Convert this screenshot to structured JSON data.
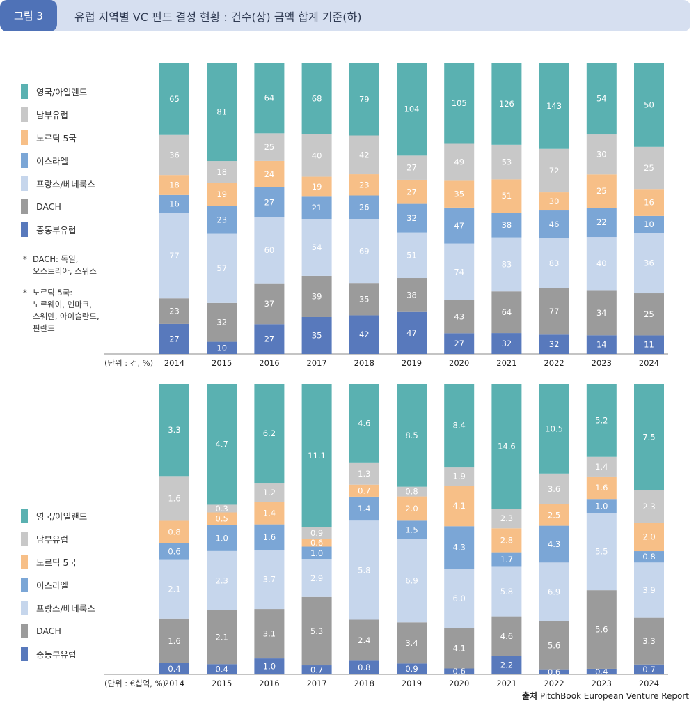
{
  "header": {
    "figure_label": "그림 3",
    "title": "유럽 지역별 VC 펀드 결성 현황 : 건수(상) 금액 합계 기준(하)"
  },
  "legend": {
    "items": [
      {
        "label": "영국/아일랜드",
        "color": "#5ab1b1"
      },
      {
        "label": "남부유럽",
        "color": "#c8c8c8"
      },
      {
        "label": "노르딕 5국",
        "color": "#f7bf87"
      },
      {
        "label": "이스라엘",
        "color": "#7ba6d6"
      },
      {
        "label": "프랑스/베네룩스",
        "color": "#c6d6ec"
      },
      {
        "label": "DACH",
        "color": "#9b9b9b"
      },
      {
        "label": "중동부유럽",
        "color": "#5879bc"
      }
    ]
  },
  "notes": {
    "star": "*",
    "dach_line1": "DACH: 독일,",
    "dach_line2": "오스트리아, 스위스",
    "nordic_line1": "노르딕 5국:",
    "nordic_line2": "노르웨이, 덴마크,",
    "nordic_line3": "스웨덴, 아이슬란드,",
    "nordic_line4": "핀란드"
  },
  "source": {
    "prefix": "출처",
    "text": "PitchBook European Venture Report"
  },
  "chart_data": [
    {
      "type": "bar",
      "stacked": true,
      "normalized": "100%",
      "unit_label": "(단위 : 건, %)",
      "categories": [
        "2014",
        "2015",
        "2016",
        "2017",
        "2018",
        "2019",
        "2020",
        "2021",
        "2022",
        "2023",
        "2024"
      ],
      "series": [
        {
          "name": "중동부유럽",
          "color": "#5879bc",
          "values": [
            27,
            10,
            27,
            35,
            42,
            47,
            27,
            32,
            32,
            14,
            11
          ]
        },
        {
          "name": "DACH",
          "color": "#9b9b9b",
          "values": [
            23,
            32,
            37,
            39,
            35,
            38,
            43,
            64,
            77,
            34,
            25
          ]
        },
        {
          "name": "프랑스/베네룩스",
          "color": "#c6d6ec",
          "values": [
            77,
            57,
            60,
            54,
            69,
            51,
            74,
            83,
            83,
            40,
            36
          ]
        },
        {
          "name": "이스라엘",
          "color": "#7ba6d6",
          "values": [
            16,
            23,
            27,
            21,
            26,
            32,
            47,
            38,
            46,
            22,
            10
          ]
        },
        {
          "name": "노르딕 5국",
          "color": "#f7bf87",
          "values": [
            18,
            19,
            24,
            19,
            23,
            27,
            35,
            51,
            30,
            25,
            16
          ]
        },
        {
          "name": "남부유럽",
          "color": "#c8c8c8",
          "values": [
            36,
            18,
            25,
            40,
            42,
            27,
            49,
            53,
            72,
            30,
            25
          ]
        },
        {
          "name": "영국/아일랜드",
          "color": "#5ab1b1",
          "values": [
            65,
            81,
            64,
            68,
            79,
            104,
            105,
            126,
            143,
            54,
            50
          ]
        }
      ]
    },
    {
      "type": "bar",
      "stacked": true,
      "normalized": "100%",
      "unit_label": "(단위 : €십억, %)",
      "categories": [
        "2014",
        "2015",
        "2016",
        "2017",
        "2018",
        "2019",
        "2020",
        "2021",
        "2022",
        "2023",
        "2024"
      ],
      "series": [
        {
          "name": "중동부유럽",
          "color": "#5879bc",
          "values": [
            "0.4",
            "0.4",
            "1.0",
            "0.7",
            "0.8",
            "0.9",
            "0.6",
            "2.2",
            "0.6",
            "0.4",
            "0.7"
          ]
        },
        {
          "name": "DACH",
          "color": "#9b9b9b",
          "values": [
            "1.6",
            "2.1",
            "3.1",
            "5.3",
            "2.4",
            "3.4",
            "4.1",
            "4.6",
            "5.6",
            "5.6",
            "3.3"
          ]
        },
        {
          "name": "프랑스/베네룩스",
          "color": "#c6d6ec",
          "values": [
            "2.1",
            "2.3",
            "3.7",
            "2.9",
            "5.8",
            "6.9",
            "6.0",
            "5.8",
            "6.9",
            "5.5",
            "3.9"
          ]
        },
        {
          "name": "이스라엘",
          "color": "#7ba6d6",
          "values": [
            "0.6",
            "1.0",
            "1.6",
            "1.0",
            "1.4",
            "1.5",
            "4.3",
            "1.7",
            "4.3",
            "1.0",
            "0.8"
          ]
        },
        {
          "name": "노르딕 5국",
          "color": "#f7bf87",
          "values": [
            "0.8",
            "0.5",
            "1.4",
            "0.6",
            "0.7",
            "2.0",
            "4.1",
            "2.8",
            "2.5",
            "1.6",
            "2.0"
          ]
        },
        {
          "name": "남부유럽",
          "color": "#c8c8c8",
          "values": [
            "1.6",
            "0.3",
            "1.2",
            "0.9",
            "1.3",
            "0.8",
            "1.9",
            "2.3",
            "3.6",
            "1.4",
            "2.3"
          ]
        },
        {
          "name": "영국/아일랜드",
          "color": "#5ab1b1",
          "values": [
            "3.3",
            "4.7",
            "6.2",
            "11.1",
            "4.6",
            "8.5",
            "8.4",
            "14.6",
            "10.5",
            "5.2",
            "7.5"
          ]
        }
      ]
    }
  ]
}
